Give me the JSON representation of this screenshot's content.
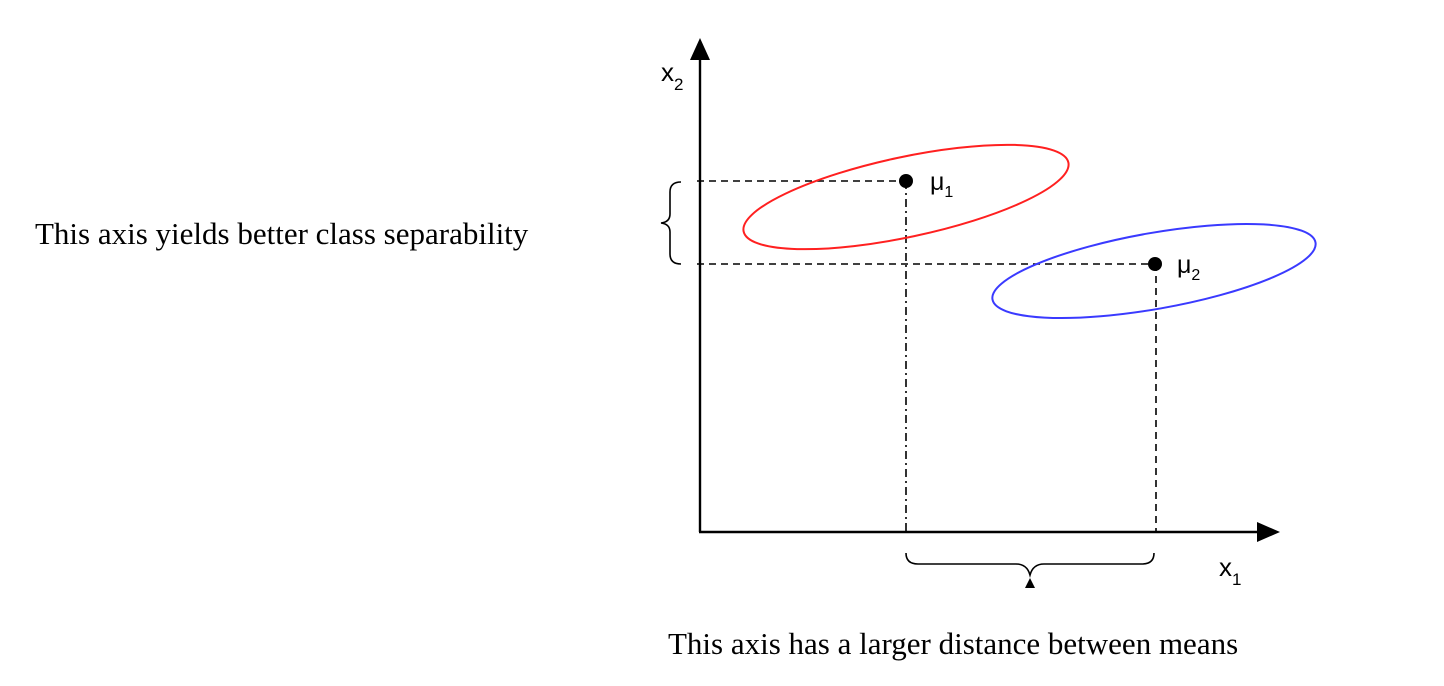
{
  "axes": {
    "x_label": {
      "base": "x",
      "sub": "1"
    },
    "y_label": {
      "base": "x",
      "sub": "2"
    }
  },
  "classes": [
    {
      "mean_label": {
        "base": "μ",
        "sub": "1"
      },
      "color": "#ff2020"
    },
    {
      "mean_label": {
        "base": "μ",
        "sub": "2"
      },
      "color": "#3a3aff"
    }
  ],
  "annotations": {
    "left": "This axis yields better class separability",
    "bottom": "This axis has a larger distance between means"
  }
}
